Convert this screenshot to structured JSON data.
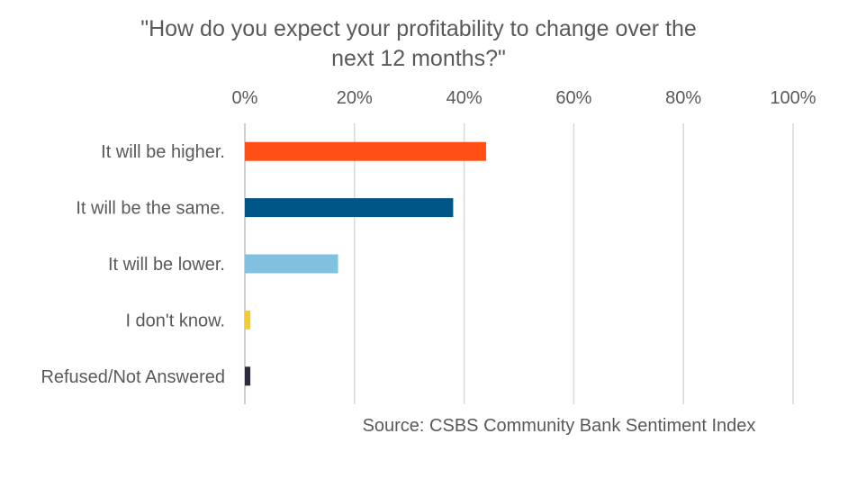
{
  "chart_data": {
    "type": "bar",
    "orientation": "horizontal",
    "title_lines": [
      "\"How do you expect your profitability to change over the",
      "next 12 months?\""
    ],
    "categories": [
      "It will be higher.",
      "It will be the same.",
      "It will be lower.",
      "I don't know.",
      "Refused/Not Answered"
    ],
    "values": [
      44,
      38,
      17,
      1,
      1
    ],
    "value_unit": "%",
    "xlim": [
      0,
      100
    ],
    "x_ticks": [
      "0%",
      "20%",
      "40%",
      "60%",
      "80%",
      "100%"
    ],
    "x_axis_position": "top",
    "grid": true,
    "legend": "none",
    "bar_colors": [
      "#FF4F17",
      "#005587",
      "#7FC1DE",
      "#F5CB2E",
      "#2B2E3A"
    ],
    "source": "Source: CSBS Community Bank Sentiment Index"
  }
}
